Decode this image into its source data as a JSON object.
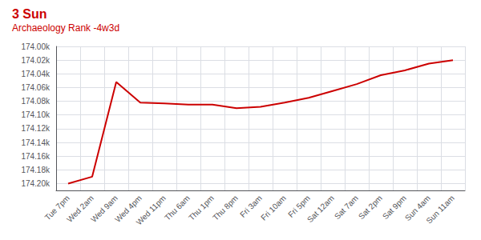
{
  "chart_data": {
    "type": "line",
    "title": "3 Sun",
    "subtitle": "Archaeology Rank -4w3d",
    "categories": [
      "Tue 7pm",
      "Wed 2am",
      "Wed 9am",
      "Wed 4pm",
      "Wed 11pm",
      "Thu 6am",
      "Thu 1pm",
      "Thu 8pm",
      "Fri 3am",
      "Fri 10am",
      "Fri 5pm",
      "Sat 12am",
      "Sat 7am",
      "Sat 2pm",
      "Sat 9pm",
      "Sun 4am",
      "Sun 11am"
    ],
    "values": [
      174200,
      174190,
      174052,
      174082,
      174083,
      174085,
      174085,
      174090,
      174088,
      174082,
      174075,
      174065,
      174055,
      174042,
      174035,
      174025,
      174020
    ],
    "color": "#cc0000",
    "ylim": [
      174210,
      174000
    ],
    "yticks": [
      {
        "value": 174000,
        "label": "174.00k"
      },
      {
        "value": 174020,
        "label": "174.02k"
      },
      {
        "value": 174040,
        "label": "174.04k"
      },
      {
        "value": 174060,
        "label": "174.06k"
      },
      {
        "value": 174080,
        "label": "174.08k"
      },
      {
        "value": 174100,
        "label": "174.10k"
      },
      {
        "value": 174120,
        "label": "174.12k"
      },
      {
        "value": 174140,
        "label": "174.14k"
      },
      {
        "value": 174160,
        "label": "174.16k"
      },
      {
        "value": 174180,
        "label": "174.18k"
      },
      {
        "value": 174200,
        "label": "174.20k"
      }
    ],
    "grid": true
  }
}
